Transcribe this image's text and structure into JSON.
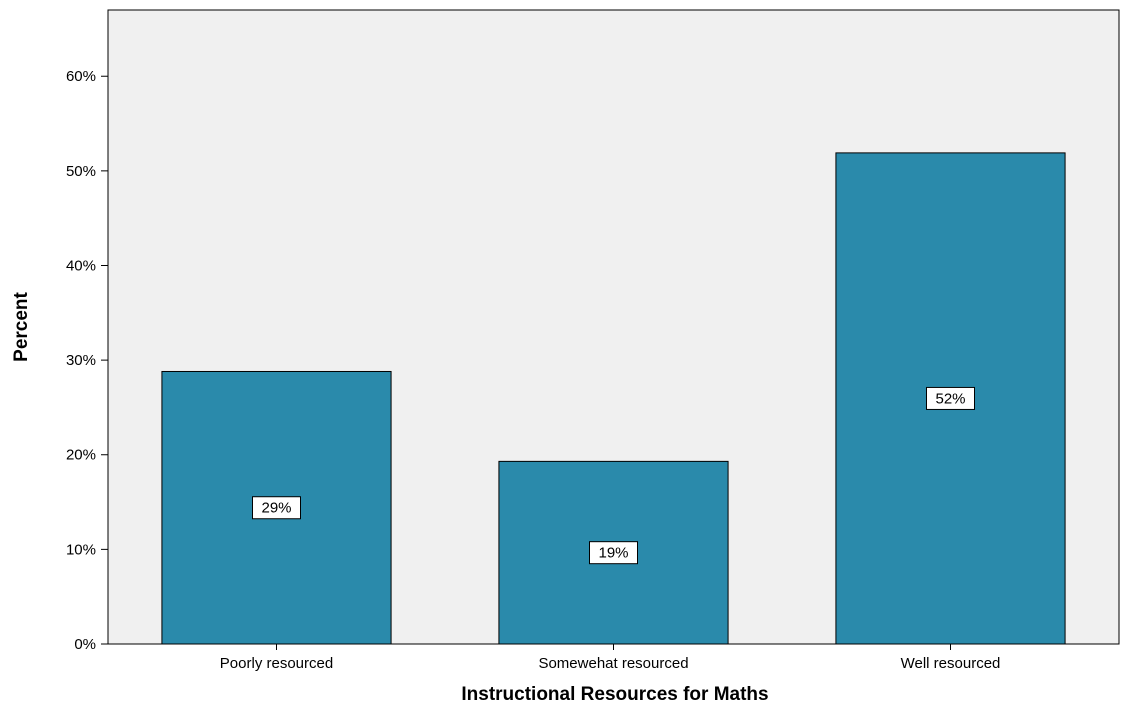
{
  "chart_data": {
    "type": "bar",
    "title": "",
    "xlabel": "Instructional Resources for Maths",
    "ylabel": "Percent",
    "categories": [
      "Poorly resourced",
      "Somewehat resourced",
      "Well resourced"
    ],
    "values": [
      28.8,
      19.3,
      51.9
    ],
    "data_labels": [
      "29%",
      "19%",
      "52%"
    ],
    "ylim": [
      0,
      67
    ],
    "yticks": [
      0,
      10,
      20,
      30,
      40,
      50,
      60
    ],
    "ytick_labels": [
      "0%",
      "10%",
      "20%",
      "30%",
      "40%",
      "50%",
      "60%"
    ],
    "grid": false,
    "legend": "none",
    "colors": {
      "bar": "#2a8aab",
      "plot_background": "#f0f0f0"
    }
  }
}
